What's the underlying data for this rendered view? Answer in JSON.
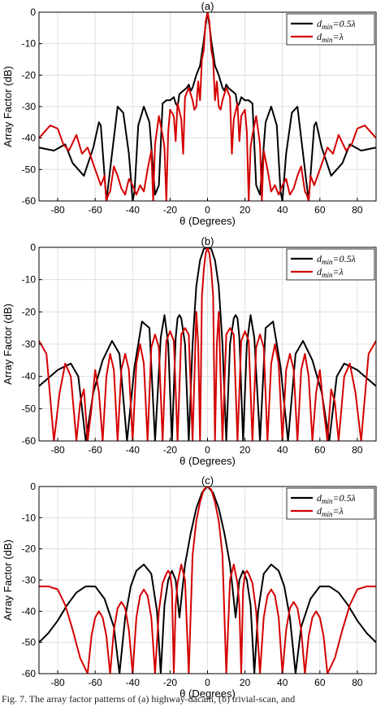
{
  "caption": "Fig. 7. The array factor patterns of (a) highway-dacam, (b) trivial-scan, and",
  "colors": {
    "series_1": "#000000",
    "series_2": "#d40000",
    "grid": "#d9d9d9",
    "axis": "#000000"
  },
  "chart_data": [
    {
      "type": "line",
      "title": "(a)",
      "xlabel": "θ (Degrees)",
      "ylabel": "Array Factor (dB)",
      "xlim": [
        -90,
        90
      ],
      "ylim": [
        -60,
        0
      ],
      "xticks": [
        "-80",
        "-60",
        "-40",
        "-20",
        "0",
        "20",
        "40",
        "60",
        "80"
      ],
      "yticks": [
        "0",
        "-10",
        "-20",
        "-30",
        "-40",
        "-50",
        "-60"
      ],
      "grid": true,
      "legend_position": "top-right",
      "series": [
        {
          "name": "d_min = 0.5λ",
          "legend": {
            "d": "d",
            "sub": "min",
            "rest": "=0.5λ"
          },
          "x": [
            -90,
            -82,
            -76,
            -72,
            -66,
            -61,
            -58,
            -57,
            -54,
            -51,
            -48,
            -45,
            -42,
            -40,
            -39,
            -37,
            -34,
            -31,
            -28,
            -26,
            -24,
            -22,
            -20,
            -18,
            -17,
            -16,
            -15,
            -13,
            -11,
            -10,
            -9,
            -8,
            -7,
            -6,
            -4,
            -2,
            -1,
            0,
            1,
            2,
            4,
            6,
            7,
            8,
            9,
            10,
            11,
            13,
            15,
            16,
            17,
            18,
            20,
            22,
            24,
            26,
            28,
            31,
            34,
            37,
            39,
            40,
            42,
            45,
            48,
            51,
            54,
            57,
            58,
            61,
            66,
            72,
            76,
            82,
            90
          ],
          "y": [
            -43,
            -44,
            -42,
            -48,
            -52,
            -43,
            -35,
            -36,
            -60,
            -45,
            -30,
            -32,
            -45,
            -60,
            -57,
            -36,
            -30,
            -35,
            -58,
            -55,
            -29,
            -28,
            -28,
            -27,
            -29,
            -30,
            -26,
            -25,
            -24,
            -23,
            -25,
            -24,
            -22,
            -20,
            -17,
            -9,
            -4,
            0,
            -4,
            -9,
            -17,
            -20,
            -22,
            -24,
            -25,
            -23,
            -24,
            -25,
            -26,
            -30,
            -29,
            -27,
            -28,
            -28,
            -29,
            -55,
            -58,
            -35,
            -30,
            -36,
            -57,
            -60,
            -45,
            -32,
            -30,
            -45,
            -60,
            -36,
            -35,
            -43,
            -52,
            -48,
            -42,
            -44,
            -43
          ]
        },
        {
          "name": "d_min = λ",
          "legend": {
            "d": "d",
            "sub": "min",
            "rest": "=λ"
          },
          "x": [
            -90,
            -87,
            -84,
            -80,
            -77,
            -74,
            -70,
            -67,
            -64,
            -60,
            -57,
            -55,
            -54,
            -53,
            -52,
            -50,
            -48,
            -46,
            -44,
            -42,
            -40,
            -38,
            -36,
            -34,
            -32,
            -30,
            -29,
            -28,
            -26,
            -24,
            -23,
            -22,
            -21,
            -20,
            -18,
            -17,
            -16,
            -14,
            -13,
            -12,
            -10,
            -8,
            -7,
            -6,
            -5,
            -4,
            -3,
            -2,
            -1,
            0,
            1,
            2,
            3,
            4,
            5,
            6,
            7,
            8,
            10,
            12,
            13,
            14,
            16,
            17,
            18,
            20,
            21,
            22,
            23,
            24,
            26,
            28,
            29,
            30,
            32,
            34,
            36,
            38,
            40,
            42,
            44,
            46,
            48,
            50,
            52,
            53,
            54,
            55,
            57,
            60,
            64,
            67,
            70,
            74,
            77,
            80,
            84,
            87,
            90
          ],
          "y": [
            -40,
            -38,
            -36,
            -37,
            -42,
            -44,
            -39,
            -45,
            -43,
            -50,
            -55,
            -52,
            -60,
            -58,
            -57,
            -49,
            -52,
            -56,
            -58,
            -53,
            -55,
            -58,
            -55,
            -57,
            -50,
            -44,
            -60,
            -42,
            -33,
            -39,
            -43,
            -60,
            -38,
            -31,
            -33,
            -41,
            -29,
            -34,
            -45,
            -27,
            -24,
            -28,
            -31,
            -30,
            -22,
            -28,
            -15,
            -12,
            -3,
            0,
            -3,
            -12,
            -15,
            -28,
            -22,
            -30,
            -31,
            -28,
            -24,
            -27,
            -45,
            -34,
            -29,
            -41,
            -33,
            -31,
            -38,
            -60,
            -43,
            -39,
            -33,
            -42,
            -60,
            -44,
            -50,
            -57,
            -55,
            -58,
            -55,
            -53,
            -58,
            -56,
            -52,
            -49,
            -57,
            -58,
            -60,
            -52,
            -55,
            -50,
            -43,
            -45,
            -39,
            -44,
            -42,
            -37,
            -36,
            -38,
            -40
          ]
        }
      ]
    },
    {
      "type": "line",
      "title": "(b)",
      "xlabel": "θ (Degrees)",
      "ylabel": "Array Factor (dB)",
      "xlim": [
        -90,
        90
      ],
      "ylim": [
        -60,
        0
      ],
      "xticks": [
        "-80",
        "-60",
        "-40",
        "-20",
        "0",
        "20",
        "40",
        "60",
        "80"
      ],
      "yticks": [
        "0",
        "-10",
        "-20",
        "-30",
        "-40",
        "-50",
        "-60"
      ],
      "grid": true,
      "legend_position": "top-right",
      "series": [
        {
          "name": "d_min = 0.5λ",
          "legend": {
            "d": "d",
            "sub": "min",
            "rest": "=0.5λ"
          },
          "x": [
            -90,
            -80,
            -73,
            -69,
            -65,
            -61,
            -56,
            -51,
            -47,
            -43,
            -39,
            -35,
            -31,
            -28,
            -25,
            -23,
            -21,
            -19,
            -17,
            -16,
            -15,
            -14,
            -12,
            -10,
            -8,
            -6,
            -4,
            -2,
            0,
            2,
            4,
            6,
            8,
            10,
            12,
            14,
            15,
            16,
            17,
            19,
            21,
            23,
            25,
            28,
            31,
            35,
            39,
            43,
            47,
            51,
            56,
            61,
            65,
            69,
            73,
            80,
            90
          ],
          "y": [
            -43,
            -38,
            -36,
            -40,
            -60,
            -45,
            -35,
            -29,
            -33,
            -60,
            -37,
            -23,
            -25,
            -60,
            -28,
            -21,
            -30,
            -60,
            -28,
            -22,
            -21,
            -22,
            -30,
            -60,
            -30,
            -12,
            -4,
            -0.5,
            0,
            -0.5,
            -4,
            -12,
            -30,
            -60,
            -30,
            -22,
            -21,
            -22,
            -28,
            -60,
            -30,
            -21,
            -28,
            -60,
            -25,
            -23,
            -37,
            -60,
            -33,
            -29,
            -35,
            -45,
            -60,
            -40,
            -36,
            -38,
            -43
          ]
        },
        {
          "name": "d_min = λ",
          "legend": {
            "d": "d",
            "sub": "min",
            "rest": "=λ"
          },
          "x": [
            -90,
            -86,
            -82,
            -79,
            -76,
            -73,
            -70,
            -68,
            -66,
            -64,
            -62,
            -60,
            -58,
            -56,
            -54,
            -52,
            -50,
            -48,
            -46,
            -44,
            -42,
            -40,
            -38,
            -36,
            -34,
            -32,
            -30,
            -28,
            -26,
            -24,
            -22,
            -20,
            -18,
            -16,
            -14,
            -12,
            -10,
            -8,
            -6,
            -5,
            -4,
            -3,
            -2,
            -1,
            0,
            1,
            2,
            3,
            4,
            5,
            6,
            8,
            10,
            12,
            14,
            16,
            18,
            20,
            22,
            24,
            26,
            28,
            30,
            32,
            34,
            36,
            38,
            40,
            42,
            44,
            46,
            48,
            50,
            52,
            54,
            56,
            58,
            60,
            62,
            64,
            66,
            68,
            70,
            73,
            76,
            79,
            82,
            86,
            90
          ],
          "y": [
            -29,
            -33,
            -60,
            -45,
            -36,
            -40,
            -60,
            -48,
            -44,
            -60,
            -50,
            -38,
            -45,
            -60,
            -40,
            -33,
            -38,
            -60,
            -38,
            -33,
            -38,
            -60,
            -36,
            -30,
            -36,
            -60,
            -31,
            -27,
            -31,
            -60,
            -29,
            -26,
            -29,
            -60,
            -27,
            -25,
            -27,
            -60,
            -20,
            -30,
            -60,
            -15,
            -7,
            -2,
            0,
            -2,
            -7,
            -15,
            -60,
            -30,
            -20,
            -60,
            -27,
            -25,
            -27,
            -60,
            -29,
            -26,
            -29,
            -60,
            -31,
            -27,
            -31,
            -60,
            -36,
            -30,
            -36,
            -60,
            -38,
            -33,
            -38,
            -60,
            -38,
            -33,
            -40,
            -60,
            -45,
            -38,
            -50,
            -60,
            -44,
            -48,
            -60,
            -40,
            -36,
            -45,
            -60,
            -33,
            -29
          ]
        }
      ]
    },
    {
      "type": "line",
      "title": "(c)",
      "xlabel": "θ (Degrees)",
      "ylabel": "Array Factor (dB)",
      "xlim": [
        -90,
        90
      ],
      "ylim": [
        -60,
        0
      ],
      "xticks": [
        "-80",
        "-60",
        "-40",
        "-20",
        "0",
        "20",
        "40",
        "60",
        "80"
      ],
      "yticks": [
        "0",
        "-10",
        "-20",
        "-30",
        "-40",
        "-50",
        "-60"
      ],
      "grid": true,
      "legend_position": "top-right",
      "series": [
        {
          "name": "d_min = 0.5λ",
          "legend": {
            "d": "d",
            "sub": "min",
            "rest": "=0.5λ"
          },
          "x": [
            -90,
            -85,
            -80,
            -75,
            -70,
            -65,
            -60,
            -55,
            -50,
            -47,
            -44,
            -41,
            -38,
            -34,
            -30,
            -27,
            -25,
            -23,
            -21,
            -19,
            -17,
            -15,
            -12,
            -9,
            -6,
            -3,
            0,
            3,
            6,
            9,
            12,
            15,
            17,
            19,
            21,
            23,
            25,
            27,
            30,
            34,
            38,
            41,
            44,
            47,
            50,
            55,
            60,
            65,
            70,
            75,
            80,
            85,
            90
          ],
          "y": [
            -50,
            -47,
            -43,
            -38,
            -34,
            -32,
            -32,
            -36,
            -45,
            -60,
            -42,
            -32,
            -27,
            -25,
            -28,
            -40,
            -60,
            -38,
            -30,
            -27,
            -30,
            -42,
            -25,
            -15,
            -7,
            -2,
            0,
            -2,
            -7,
            -15,
            -25,
            -42,
            -30,
            -27,
            -30,
            -38,
            -60,
            -40,
            -28,
            -25,
            -27,
            -32,
            -42,
            -60,
            -45,
            -36,
            -32,
            -32,
            -34,
            -38,
            -43,
            -47,
            -50
          ]
        },
        {
          "name": "d_min = λ",
          "legend": {
            "d": "d",
            "sub": "min",
            "rest": "=λ"
          },
          "x": [
            -90,
            -85,
            -80,
            -76,
            -72,
            -68,
            -64,
            -62,
            -60,
            -58,
            -56,
            -54,
            -52,
            -50,
            -48,
            -46,
            -44,
            -42,
            -40,
            -38,
            -36,
            -34,
            -32,
            -30,
            -28,
            -26,
            -24,
            -22,
            -21,
            -20,
            -19,
            -18,
            -17,
            -16,
            -14,
            -12,
            -10,
            -8,
            -6,
            -4,
            -2,
            0,
            2,
            4,
            6,
            8,
            10,
            12,
            14,
            16,
            17,
            18,
            19,
            20,
            21,
            22,
            24,
            26,
            28,
            30,
            32,
            34,
            36,
            38,
            40,
            42,
            44,
            46,
            48,
            50,
            52,
            54,
            56,
            58,
            60,
            62,
            64,
            68,
            72,
            76,
            80,
            85,
            90
          ],
          "y": [
            -32,
            -32,
            -33,
            -38,
            -46,
            -55,
            -60,
            -48,
            -42,
            -40,
            -42,
            -48,
            -60,
            -46,
            -39,
            -37,
            -39,
            -46,
            -60,
            -42,
            -35,
            -33,
            -35,
            -42,
            -60,
            -40,
            -31,
            -28,
            -27,
            -28,
            -33,
            -60,
            -38,
            -31,
            -25,
            -30,
            -60,
            -22,
            -11,
            -5,
            -1,
            0,
            -1,
            -5,
            -11,
            -22,
            -60,
            -30,
            -25,
            -31,
            -38,
            -60,
            -33,
            -28,
            -27,
            -28,
            -31,
            -40,
            -60,
            -42,
            -35,
            -33,
            -35,
            -42,
            -60,
            -46,
            -39,
            -37,
            -39,
            -46,
            -60,
            -48,
            -42,
            -40,
            -42,
            -48,
            -60,
            -55,
            -46,
            -38,
            -33,
            -32,
            -32
          ]
        }
      ]
    }
  ]
}
